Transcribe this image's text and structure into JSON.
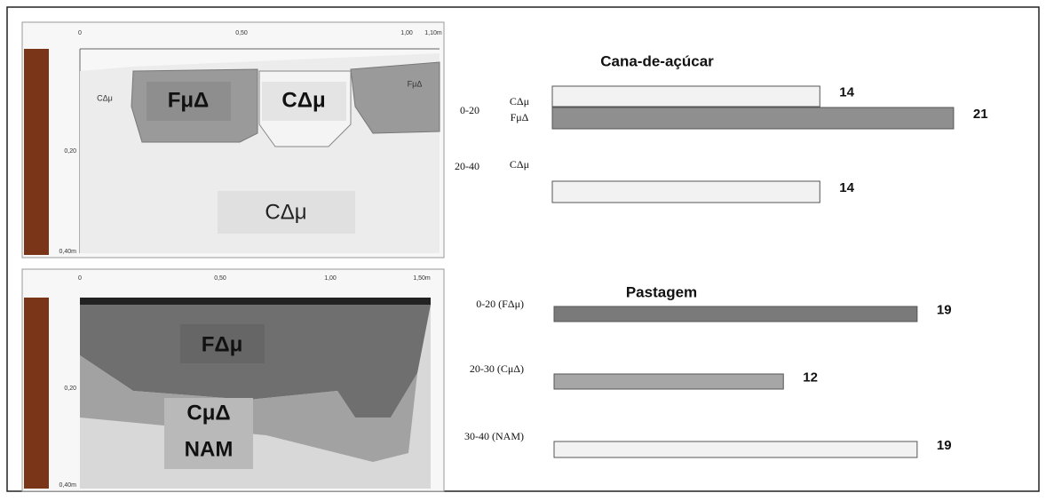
{
  "chart_data": [
    {
      "type": "bar",
      "title": "Cana-de-açúcar",
      "xlim": [
        0,
        25
      ],
      "groups": [
        {
          "label": "0-20",
          "bars": [
            {
              "label": "CΔμ",
              "value": 14,
              "color": "#f2f2f2"
            },
            {
              "label": "FμΔ",
              "value": 21,
              "color": "#8f8f8f"
            }
          ]
        },
        {
          "label": "20-40",
          "bars": [
            {
              "label": "CΔμ",
              "value": 14,
              "color": "#f2f2f2"
            }
          ]
        }
      ]
    },
    {
      "type": "bar",
      "title": "Pastagem",
      "xlim": [
        0,
        25
      ],
      "groups": [
        {
          "label": "0-20 (FΔμ)",
          "bars": [
            {
              "value": 19,
              "color": "#7a7a7a"
            }
          ]
        },
        {
          "label": "20-30 (CμΔ)",
          "bars": [
            {
              "value": 12,
              "color": "#a6a6a6"
            }
          ]
        },
        {
          "label": "30-40 (NAM)",
          "bars": [
            {
              "value": 19,
              "color": "#f2f2f2"
            }
          ]
        }
      ]
    }
  ],
  "profiles": [
    {
      "top_ticks": [
        "0",
        "0,50",
        "1,00",
        "1,10m"
      ],
      "side_ticks": [
        "0,20",
        "0,40m"
      ],
      "labels": [
        "FμΔ",
        "CΔμ",
        "CΔμ"
      ],
      "small_labels": [
        "CΔμ",
        "FμΔ"
      ]
    },
    {
      "top_ticks": [
        "0",
        "0,50",
        "1,00",
        "1,50m"
      ],
      "side_ticks": [
        "0,20",
        "0,40m"
      ],
      "labels": [
        "FΔμ",
        "CμΔ",
        "NAM"
      ]
    }
  ]
}
